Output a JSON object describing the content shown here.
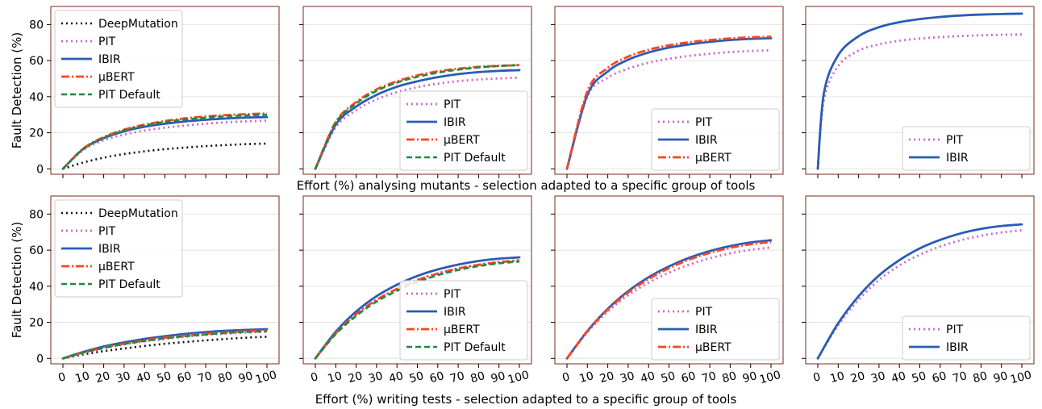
{
  "figure": {
    "row_xlabels": [
      "Effort (%) analysing mutants - selection adapted to a specific group of tools",
      "Effort (%) writing tests - selection adapted to a specific group of tools"
    ],
    "ylabel": "Fault Detection (%)"
  },
  "styles": {
    "DeepMutation": {
      "color": "#111111",
      "dash": "2,4",
      "width": 2.6
    },
    "PIT": {
      "color": "#cc66cc",
      "dash": "2,4",
      "width": 2.8
    },
    "IBIR": {
      "color": "#2a5cb5",
      "dash": "",
      "width": 2.8
    },
    "μBERT": {
      "color": "#ff4422",
      "dash": "10,3,2,3",
      "width": 2.8
    },
    "PIT Default": {
      "color": "#1f8a3a",
      "dash": "7,4",
      "width": 2.6
    }
  },
  "chart_data": [
    {
      "type": "line",
      "row": 0,
      "col": 0,
      "x": [
        0,
        10,
        20,
        30,
        40,
        50,
        60,
        70,
        80,
        90,
        100
      ],
      "xlim": [
        0,
        100
      ],
      "ylim": [
        -3,
        90
      ],
      "yticks": [
        0,
        20,
        40,
        60,
        80
      ],
      "xticks": [
        0,
        10,
        20,
        30,
        40,
        50,
        60,
        70,
        80,
        90,
        100
      ],
      "show_yticks": true,
      "show_xticks": false,
      "ylabel": "Fault Detection (%)",
      "legend": {
        "position": "upper-left",
        "entries": [
          "DeepMutation",
          "PIT",
          "IBIR",
          "μBERT",
          "PIT Default"
        ]
      },
      "series": [
        {
          "name": "DeepMutation",
          "values": [
            0,
            3.5,
            6.2,
            8.2,
            9.7,
            10.9,
            11.8,
            12.6,
            13.2,
            13.7,
            14.0
          ]
        },
        {
          "name": "PIT",
          "values": [
            0,
            10.5,
            15.8,
            19.0,
            21.2,
            22.8,
            24.0,
            25.0,
            25.8,
            26.3,
            26.7
          ]
        },
        {
          "name": "IBIR",
          "values": [
            0,
            11.0,
            17.0,
            20.8,
            23.3,
            25.0,
            26.3,
            27.2,
            27.9,
            28.4,
            28.7
          ]
        },
        {
          "name": "μBERT",
          "values": [
            0,
            11.3,
            17.6,
            21.7,
            24.5,
            26.5,
            28.0,
            29.0,
            29.8,
            30.3,
            30.7
          ]
        },
        {
          "name": "PIT Default",
          "values": [
            0,
            11.1,
            17.3,
            21.3,
            24.0,
            26.0,
            27.4,
            28.4,
            29.1,
            29.6,
            30.0
          ]
        }
      ]
    },
    {
      "type": "line",
      "row": 0,
      "col": 1,
      "x": [
        0,
        10,
        20,
        30,
        40,
        50,
        60,
        70,
        80,
        90,
        100
      ],
      "xlim": [
        0,
        100
      ],
      "ylim": [
        -3,
        90
      ],
      "yticks": [
        0,
        20,
        40,
        60,
        80
      ],
      "xticks": [
        0,
        10,
        20,
        30,
        40,
        50,
        60,
        70,
        80,
        90,
        100
      ],
      "show_yticks": false,
      "show_xticks": false,
      "legend": {
        "position": "lower-right",
        "entries": [
          "PIT",
          "IBIR",
          "μBERT",
          "PIT Default"
        ]
      },
      "series": [
        {
          "name": "PIT",
          "values": [
            0,
            23.0,
            32.5,
            38.5,
            42.5,
            45.3,
            47.2,
            48.6,
            49.5,
            50.1,
            50.5
          ]
        },
        {
          "name": "IBIR",
          "values": [
            0,
            24.5,
            34.5,
            41.0,
            45.5,
            48.5,
            50.8,
            52.5,
            53.6,
            54.3,
            54.7
          ]
        },
        {
          "name": "μBERT",
          "values": [
            0,
            26.0,
            37.0,
            44.0,
            48.5,
            51.8,
            54.0,
            55.5,
            56.5,
            57.1,
            57.5
          ]
        },
        {
          "name": "PIT Default",
          "values": [
            0,
            25.5,
            36.2,
            43.2,
            47.8,
            51.0,
            53.3,
            55.0,
            56.2,
            57.0,
            57.5
          ]
        }
      ]
    },
    {
      "type": "line",
      "row": 0,
      "col": 2,
      "x": [
        0,
        10,
        20,
        30,
        40,
        50,
        60,
        70,
        80,
        90,
        100
      ],
      "xlim": [
        0,
        100
      ],
      "ylim": [
        -3,
        90
      ],
      "yticks": [
        0,
        20,
        40,
        60,
        80
      ],
      "xticks": [
        0,
        10,
        20,
        30,
        40,
        50,
        60,
        70,
        80,
        90,
        100
      ],
      "show_yticks": false,
      "show_xticks": false,
      "legend": {
        "position": "lower-right",
        "entries": [
          "PIT",
          "IBIR",
          "μBERT"
        ]
      },
      "series": [
        {
          "name": "PIT",
          "values": [
            0,
            40.0,
            50.5,
            55.5,
            58.8,
            61.0,
            62.6,
            63.8,
            64.7,
            65.3,
            65.7
          ]
        },
        {
          "name": "IBIR",
          "values": [
            0,
            41.0,
            54.0,
            60.5,
            64.5,
            67.2,
            69.0,
            70.4,
            71.4,
            72.0,
            72.4
          ]
        },
        {
          "name": "μBERT",
          "values": [
            0,
            43.0,
            56.0,
            62.2,
            66.0,
            68.5,
            70.2,
            71.4,
            72.3,
            72.9,
            73.2
          ]
        }
      ]
    },
    {
      "type": "line",
      "row": 0,
      "col": 3,
      "x": [
        0,
        3,
        10,
        20,
        30,
        40,
        50,
        60,
        70,
        80,
        90,
        100
      ],
      "xlim": [
        0,
        100
      ],
      "ylim": [
        -3,
        90
      ],
      "yticks": [
        0,
        20,
        40,
        60,
        80
      ],
      "xticks": [
        0,
        10,
        20,
        30,
        40,
        50,
        60,
        70,
        80,
        90,
        100
      ],
      "show_yticks": false,
      "show_xticks": false,
      "legend": {
        "position": "lower-right",
        "entries": [
          "PIT",
          "IBIR"
        ]
      },
      "series": [
        {
          "name": "PIT",
          "values": [
            0,
            38.0,
            57.0,
            65.5,
            69.0,
            71.0,
            72.2,
            73.0,
            73.6,
            74.0,
            74.3,
            74.5
          ]
        },
        {
          "name": "IBIR",
          "values": [
            0,
            42.0,
            63.0,
            73.5,
            78.5,
            81.3,
            83.0,
            84.2,
            85.0,
            85.5,
            85.8,
            86.0
          ]
        }
      ]
    },
    {
      "type": "line",
      "row": 1,
      "col": 0,
      "x": [
        0,
        10,
        20,
        30,
        40,
        50,
        60,
        70,
        80,
        90,
        100
      ],
      "xlim": [
        0,
        100
      ],
      "ylim": [
        -3,
        90
      ],
      "yticks": [
        0,
        20,
        40,
        60,
        80
      ],
      "xticks": [
        0,
        10,
        20,
        30,
        40,
        50,
        60,
        70,
        80,
        90,
        100
      ],
      "show_yticks": true,
      "show_xticks": true,
      "ylabel": "Fault Detection (%)",
      "legend": {
        "position": "upper-left",
        "entries": [
          "DeepMutation",
          "PIT",
          "IBIR",
          "μBERT",
          "PIT Default"
        ]
      },
      "series": [
        {
          "name": "DeepMutation",
          "values": [
            0,
            2.2,
            4.0,
            5.5,
            6.9,
            8.1,
            9.1,
            10.0,
            10.8,
            11.5,
            12.0
          ]
        },
        {
          "name": "PIT",
          "values": [
            0,
            3.0,
            5.6,
            7.7,
            9.4,
            10.8,
            12.0,
            13.0,
            13.7,
            14.3,
            14.8
          ]
        },
        {
          "name": "IBIR",
          "values": [
            0,
            3.6,
            6.6,
            8.9,
            10.8,
            12.3,
            13.6,
            14.6,
            15.3,
            15.8,
            16.2
          ]
        },
        {
          "name": "μBERT",
          "values": [
            0,
            3.3,
            6.0,
            8.2,
            10.0,
            11.5,
            12.7,
            13.7,
            14.5,
            15.1,
            15.5
          ]
        },
        {
          "name": "PIT Default",
          "values": [
            0,
            3.2,
            5.8,
            8.0,
            9.7,
            11.1,
            12.3,
            13.3,
            14.1,
            14.7,
            15.0
          ]
        }
      ]
    },
    {
      "type": "line",
      "row": 1,
      "col": 1,
      "x": [
        0,
        10,
        20,
        30,
        40,
        50,
        60,
        70,
        80,
        90,
        100
      ],
      "xlim": [
        0,
        100
      ],
      "ylim": [
        -3,
        90
      ],
      "yticks": [
        0,
        20,
        40,
        60,
        80
      ],
      "xticks": [
        0,
        10,
        20,
        30,
        40,
        50,
        60,
        70,
        80,
        90,
        100
      ],
      "show_yticks": false,
      "show_xticks": true,
      "legend": {
        "position": "lower-right",
        "entries": [
          "PIT",
          "IBIR",
          "μBERT",
          "PIT Default"
        ]
      },
      "series": [
        {
          "name": "PIT",
          "values": [
            0,
            14.0,
            24.5,
            32.5,
            38.5,
            43.5,
            47.2,
            50.0,
            52.0,
            53.5,
            54.5
          ]
        },
        {
          "name": "IBIR",
          "values": [
            0,
            14.8,
            26.0,
            34.5,
            40.8,
            45.7,
            49.3,
            52.0,
            54.0,
            55.3,
            56.0
          ]
        },
        {
          "name": "μBERT",
          "values": [
            0,
            14.0,
            24.5,
            32.5,
            38.5,
            43.4,
            47.0,
            49.8,
            51.8,
            53.3,
            54.3
          ]
        },
        {
          "name": "PIT Default",
          "values": [
            0,
            13.5,
            23.6,
            31.5,
            37.5,
            42.4,
            46.1,
            49.0,
            51.2,
            52.7,
            53.7
          ]
        }
      ]
    },
    {
      "type": "line",
      "row": 1,
      "col": 2,
      "x": [
        0,
        10,
        20,
        30,
        40,
        50,
        60,
        70,
        80,
        90,
        100
      ],
      "xlim": [
        0,
        100
      ],
      "ylim": [
        -3,
        90
      ],
      "yticks": [
        0,
        20,
        40,
        60,
        80
      ],
      "xticks": [
        0,
        10,
        20,
        30,
        40,
        50,
        60,
        70,
        80,
        90,
        100
      ],
      "show_yticks": false,
      "show_xticks": true,
      "legend": {
        "position": "lower-right",
        "entries": [
          "PIT",
          "IBIR",
          "μBERT"
        ]
      },
      "series": [
        {
          "name": "PIT",
          "values": [
            0,
            14.5,
            26.0,
            35.0,
            42.0,
            47.5,
            52.0,
            55.5,
            58.2,
            60.2,
            61.5
          ]
        },
        {
          "name": "IBIR",
          "values": [
            0,
            15.2,
            27.5,
            37.3,
            45.0,
            51.0,
            55.8,
            59.5,
            62.3,
            64.3,
            65.5
          ]
        },
        {
          "name": "μBERT",
          "values": [
            0,
            15.0,
            27.0,
            36.5,
            44.0,
            50.0,
            54.8,
            58.5,
            61.3,
            63.3,
            64.5
          ]
        }
      ]
    },
    {
      "type": "line",
      "row": 1,
      "col": 3,
      "x": [
        0,
        10,
        20,
        30,
        40,
        50,
        60,
        70,
        80,
        90,
        100
      ],
      "xlim": [
        0,
        100
      ],
      "ylim": [
        -3,
        90
      ],
      "yticks": [
        0,
        20,
        40,
        60,
        80
      ],
      "xticks": [
        0,
        10,
        20,
        30,
        40,
        50,
        60,
        70,
        80,
        90,
        100
      ],
      "show_yticks": false,
      "show_xticks": true,
      "legend": {
        "position": "lower-right",
        "entries": [
          "PIT",
          "IBIR"
        ]
      },
      "series": [
        {
          "name": "PIT",
          "values": [
            0,
            18.5,
            32.5,
            43.5,
            51.5,
            57.5,
            62.0,
            65.5,
            68.0,
            69.8,
            71.0
          ]
        },
        {
          "name": "IBIR",
          "values": [
            0,
            19.5,
            34.5,
            46.0,
            54.5,
            61.0,
            65.7,
            69.3,
            71.8,
            73.4,
            74.3
          ]
        }
      ]
    }
  ]
}
